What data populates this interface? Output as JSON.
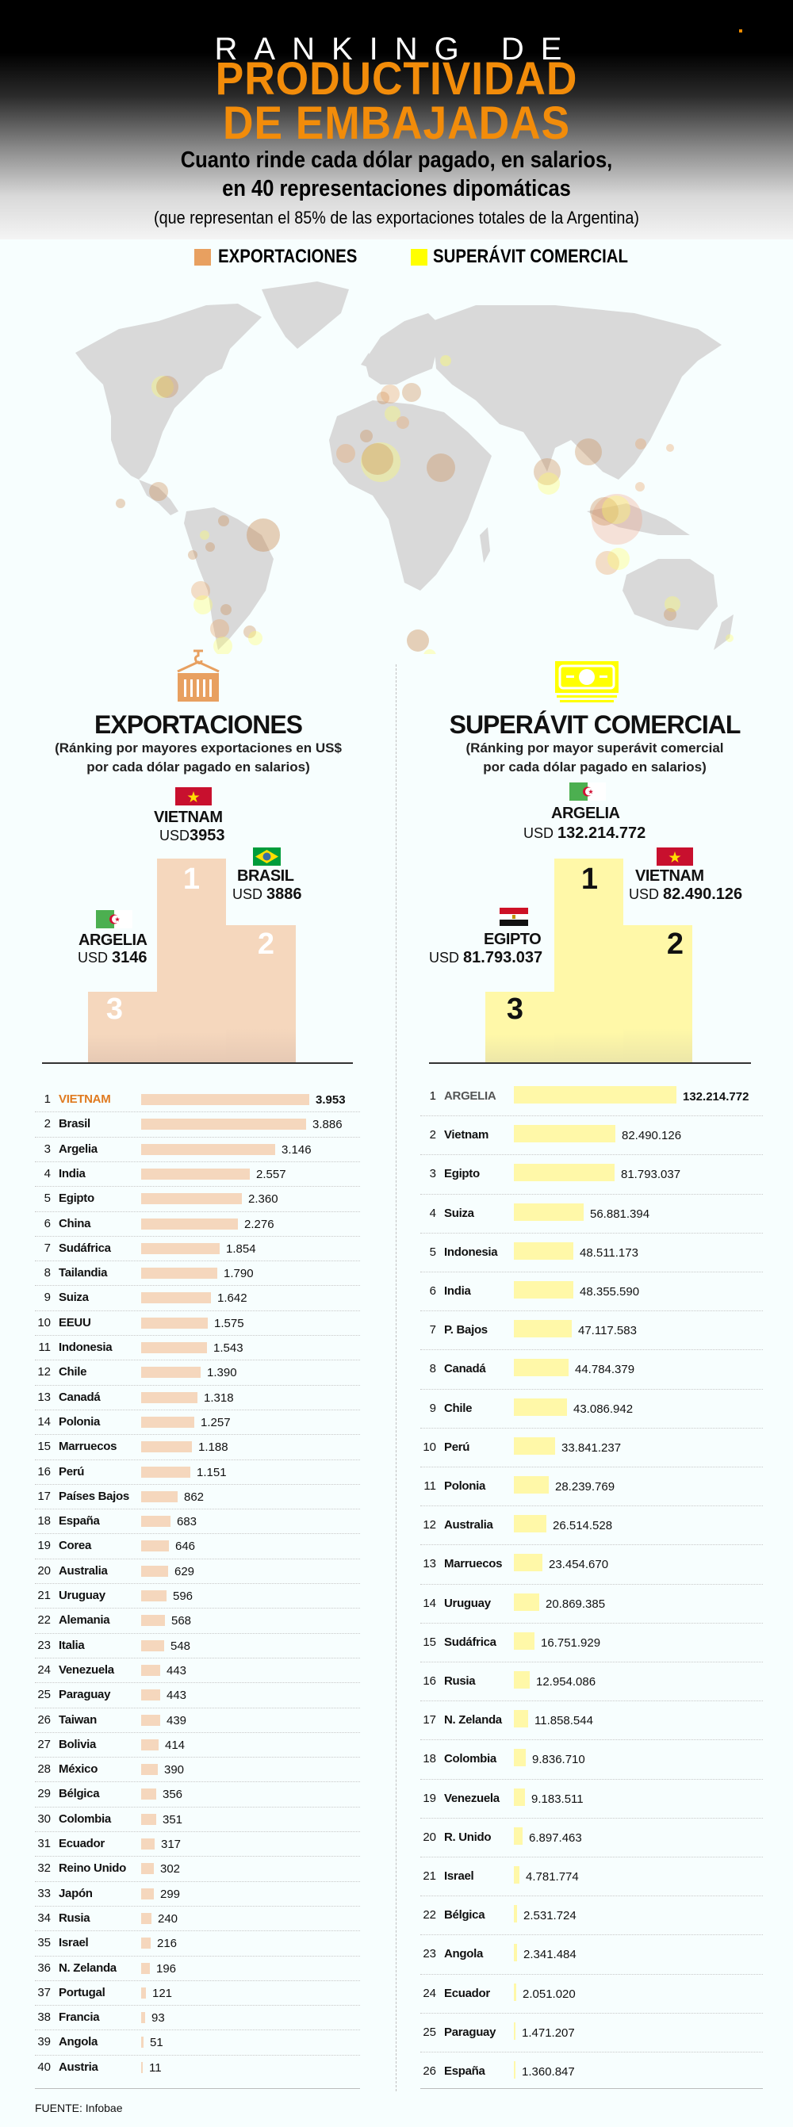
{
  "header": {
    "kicker": "RANKING DE",
    "title_line1": "PRODUCTIVIDAD",
    "title_line2": "DE EMBAJADAS",
    "subtitle_line1": "Cuanto rinde cada dólar pagado, en salarios,",
    "subtitle_line2": "en 40 representaciones dipomáticas",
    "note": "(que representan el  85%  de las exportaciones totales de la Argentina)"
  },
  "legend": {
    "exports_label": "EXPORTACIONES",
    "exports_color": "#e8a060",
    "surplus_label": "SUPERÁVIT COMERCIAL",
    "surplus_color": "#ffff00"
  },
  "colors": {
    "exports_bar": "#f5d7bd",
    "surplus_bar": "#fff8a8",
    "accent_orange": "#f28c0a",
    "map_land": "#d9d9d9"
  },
  "exports_section": {
    "icon": "container-crane-icon",
    "title": "EXPORTACIONES",
    "subtitle_line1": "(Ránking por mayores exportaciones en US$",
    "subtitle_line2": "por cada dólar pagado en salarios)",
    "podium": [
      {
        "place": "1",
        "country": "VIETNAM",
        "currency": "USD",
        "value": "3953",
        "flag": "vietnam-flag"
      },
      {
        "place": "2",
        "country": "BRASIL",
        "currency": "USD",
        "value": "3886",
        "flag": "brazil-flag"
      },
      {
        "place": "3",
        "country": "ARGELIA",
        "currency": "USD",
        "value": "3146",
        "flag": "algeria-flag"
      }
    ]
  },
  "surplus_section": {
    "icon": "banknote-icon",
    "title": "SUPERÁVIT COMERCIAL",
    "subtitle_line1": "(Ránking por mayor superávit comercial",
    "subtitle_line2": "por cada dólar pagado en salarios)",
    "podium": [
      {
        "place": "1",
        "country": "ARGELIA",
        "currency": "USD",
        "value": "132.214.772",
        "flag": "algeria-flag"
      },
      {
        "place": "2",
        "country": "VIETNAM",
        "currency": "USD",
        "value": "82.490.126",
        "flag": "vietnam-flag"
      },
      {
        "place": "3",
        "country": "EGIPTO",
        "currency": "USD",
        "value": "81.793.037",
        "flag": "egypt-flag"
      }
    ]
  },
  "footer": {
    "source": "FUENTE: Infobae"
  },
  "chart_data": [
    {
      "type": "bar",
      "orientation": "horizontal",
      "title": "EXPORTACIONES",
      "subtitle": "(Ránking por mayores exportaciones en US$ por cada dólar pagado en salarios)",
      "categories": [
        "VIETNAM",
        "Brasil",
        "Argelia",
        "India",
        "Egipto",
        "China",
        "Sudáfrica",
        "Tailandia",
        "Suiza",
        "EEUU",
        "Indonesia",
        "Chile",
        "Canadá",
        "Polonia",
        "Marruecos",
        "Perú",
        "Países Bajos",
        "España",
        "Corea",
        "Australia",
        "Uruguay",
        "Alemania",
        "Italia",
        "Venezuela",
        "Paraguay",
        "Taiwan",
        "Bolivia",
        "México",
        "Bélgica",
        "Colombia",
        "Ecuador",
        "Reino Unido",
        "Japón",
        "Rusia",
        "Israel",
        "N. Zelanda",
        "Portugal",
        "Francia",
        "Angola",
        "Austria"
      ],
      "values": [
        3953,
        3886,
        3146,
        2557,
        2360,
        2276,
        1854,
        1790,
        1642,
        1575,
        1543,
        1390,
        1318,
        1257,
        1188,
        1151,
        862,
        683,
        646,
        629,
        596,
        568,
        548,
        443,
        443,
        439,
        414,
        390,
        356,
        351,
        317,
        302,
        299,
        240,
        216,
        196,
        121,
        93,
        51,
        11
      ],
      "labels": [
        "3.953",
        "3.886",
        "3.146",
        "2.557",
        "2.360",
        "2.276",
        "1.854",
        "1.790",
        "1.642",
        "1.575",
        "1.543",
        "1.390",
        "1.318",
        "1.257",
        "1.188",
        "1.151",
        "862",
        "683",
        "646",
        "629",
        "596",
        "568",
        "548",
        "443",
        "443",
        "439",
        "414",
        "390",
        "356",
        "351",
        "317",
        "302",
        "299",
        "240",
        "216",
        "196",
        "121",
        "93",
        "51",
        "11"
      ],
      "color": "#f5d7bd",
      "xlabel": "",
      "ylabel": "",
      "grid": false
    },
    {
      "type": "bar",
      "orientation": "horizontal",
      "title": "SUPERÁVIT COMERCIAL",
      "subtitle": "(Ránking por mayor superávit comercial por cada dólar pagado en salarios)",
      "categories": [
        "ARGELIA",
        "Vietnam",
        "Egipto",
        "Suiza",
        "Indonesia",
        "India",
        "P. Bajos",
        "Canadá",
        "Chile",
        "Perú",
        "Polonia",
        "Australia",
        "Marruecos",
        "Uruguay",
        "Sudáfrica",
        "Rusia",
        "N. Zelanda",
        "Colombia",
        "Venezuela",
        "R. Unido",
        "Israel",
        "Bélgica",
        "Angola",
        "Ecuador",
        "Paraguay",
        "España"
      ],
      "values": [
        132214772,
        82490126,
        81793037,
        56881394,
        48511173,
        48355590,
        47117583,
        44784379,
        43086942,
        33841237,
        28239769,
        26514528,
        23454670,
        20869385,
        16751929,
        12954086,
        11858544,
        9836710,
        9183511,
        6897463,
        4781774,
        2531724,
        2341484,
        2051020,
        1471207,
        1360847
      ],
      "labels": [
        "132.214.772",
        "82.490.126",
        "81.793.037",
        "56.881.394",
        "48.511.173",
        "48.355.590",
        "47.117.583",
        "44.784.379",
        "43.086.942",
        "33.841.237",
        "28.239.769",
        "26.514.528",
        "23.454.670",
        "20.869.385",
        "16.751.929",
        "12.954.086",
        "11.858.544",
        "9.836.710",
        "9.183.511",
        "6.897.463",
        "4.781.774",
        "2.531.724",
        "2.341.484",
        "2.051.020",
        "1.471.207",
        "1.360.847"
      ],
      "color": "#fff8a8",
      "xlabel": "",
      "ylabel": "",
      "grid": false
    }
  ]
}
